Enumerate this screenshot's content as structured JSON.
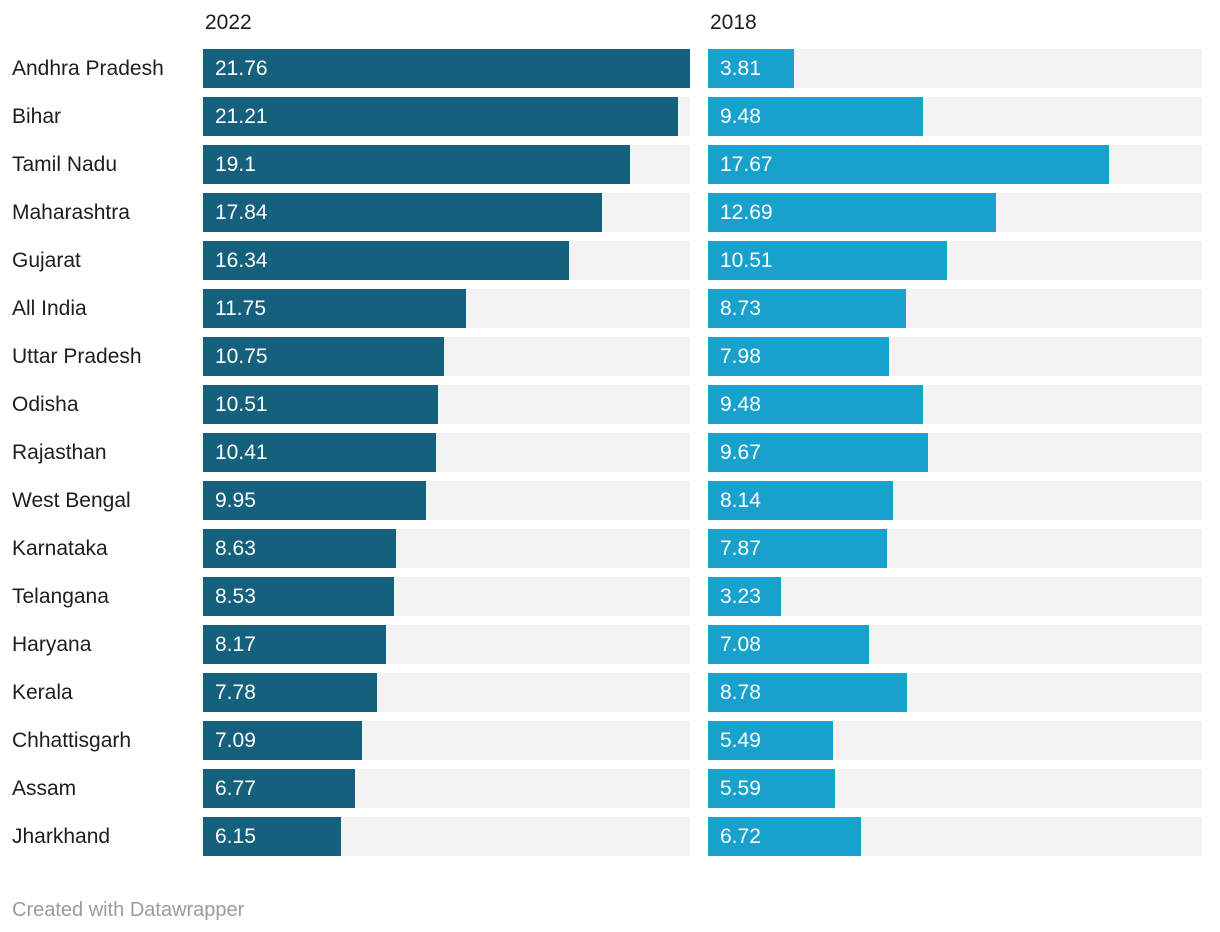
{
  "header": {
    "col_2022": "2022",
    "col_2018": "2018"
  },
  "footer": {
    "credit": "Created with Datawrapper"
  },
  "chart_data": {
    "type": "bar",
    "layout": "split-bars-horizontal",
    "title": "",
    "xlabel": "",
    "ylabel": "",
    "xmax": 21.76,
    "grid": false,
    "legend_position": "column-headers",
    "value_labels_inside_bars": true,
    "track_color": "#f3f3f3",
    "label_color": "#1d1d1d",
    "value_label_color": "#ffffff",
    "categories": [
      "Andhra Pradesh",
      "Bihar",
      "Tamil Nadu",
      "Maharashtra",
      "Gujarat",
      "All India",
      "Uttar Pradesh",
      "Odisha",
      "Rajasthan",
      "West Bengal",
      "Karnataka",
      "Telangana",
      "Haryana",
      "Kerala",
      "Chhattisgarh",
      "Assam",
      "Jharkhand"
    ],
    "series": [
      {
        "name": "2022",
        "color": "#15607d",
        "values": [
          21.76,
          21.21,
          19.1,
          17.84,
          16.34,
          11.75,
          10.75,
          10.51,
          10.41,
          9.95,
          8.63,
          8.53,
          8.17,
          7.78,
          7.09,
          6.77,
          6.15
        ]
      },
      {
        "name": "2018",
        "color": "#18a1cd",
        "values": [
          3.81,
          9.48,
          17.67,
          12.69,
          10.51,
          8.73,
          7.98,
          9.48,
          9.67,
          8.14,
          7.87,
          3.23,
          7.08,
          8.78,
          5.49,
          5.59,
          6.72
        ]
      }
    ]
  }
}
